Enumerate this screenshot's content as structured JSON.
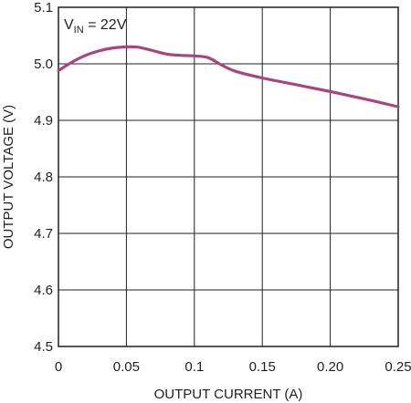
{
  "chart_data": {
    "type": "line",
    "xlabel": "OUTPUT CURRENT (A)",
    "ylabel": "OUTPUT VOLTAGE (V)",
    "xlim": [
      0,
      0.25
    ],
    "ylim": [
      4.5,
      5.1
    ],
    "x_ticks": [
      "0",
      "0.05",
      "0.1",
      "0.15",
      "0.20",
      "0.25"
    ],
    "y_ticks": [
      "4.5",
      "4.6",
      "4.7",
      "4.8",
      "4.9",
      "5.0",
      "5.1"
    ],
    "grid": true,
    "annotation": {
      "main": "V",
      "sub": "IN",
      "rest": " = 22V"
    },
    "series": [
      {
        "color": "#a8457f",
        "x": [
          0,
          0.01,
          0.02,
          0.03,
          0.04,
          0.05,
          0.055,
          0.06,
          0.07,
          0.08,
          0.09,
          0.1,
          0.11,
          0.12,
          0.13,
          0.15,
          0.175,
          0.2,
          0.225,
          0.25
        ],
        "y": [
          4.988,
          5.003,
          5.015,
          5.023,
          5.028,
          5.03,
          5.03,
          5.029,
          5.023,
          5.017,
          5.015,
          5.014,
          5.011,
          4.998,
          4.987,
          4.975,
          4.963,
          4.951,
          4.938,
          4.924
        ]
      }
    ]
  }
}
